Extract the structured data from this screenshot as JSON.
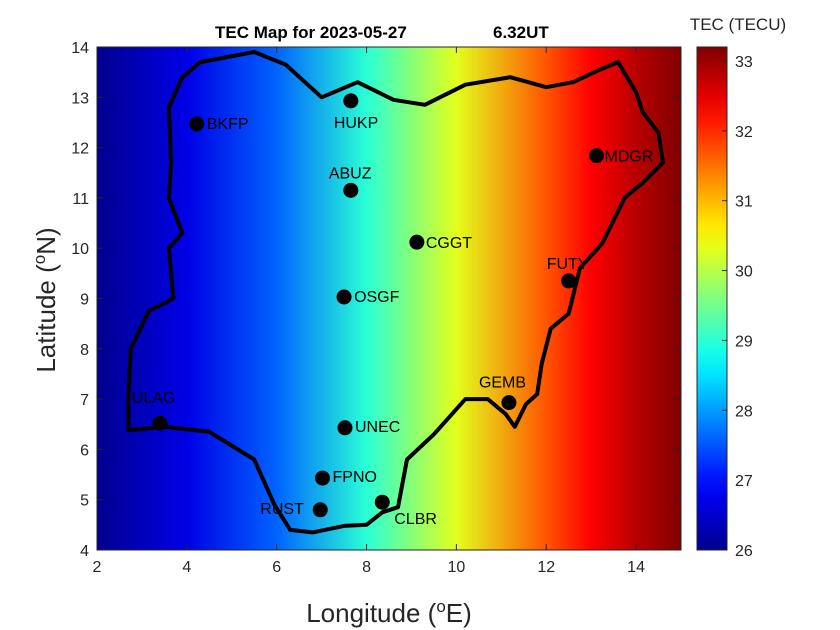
{
  "title_date": "TEC Map for 2023-05-27",
  "title_time": "6.32UT",
  "xlabel": "Longitude (",
  "xlabel_sup": "o",
  "xlabel_end": "E)",
  "ylabel": "Latitude (",
  "ylabel_sup": "o",
  "ylabel_end": "N)",
  "colorbar_label": "TEC (TECU)",
  "colormap": "jet",
  "colors": {
    "jet": [
      "#00008f",
      "#0000ff",
      "#00ffff",
      "#ffff00",
      "#ff0000",
      "#800000"
    ],
    "boundary": "#000000",
    "station_marker": "#000000"
  },
  "chart_data": {
    "type": "heatmap",
    "xlim": [
      2,
      15
    ],
    "ylim": [
      4,
      14
    ],
    "xticks": [
      2,
      4,
      6,
      8,
      10,
      12,
      14
    ],
    "yticks": [
      4,
      5,
      6,
      7,
      8,
      9,
      10,
      11,
      12,
      13,
      14
    ],
    "color_range": [
      26,
      33.2
    ],
    "colorbar_ticks": [
      26,
      27,
      28,
      29,
      30,
      31,
      32,
      33
    ],
    "tec_gradient_by_longitude": [
      {
        "lon": 2,
        "tec": 26.0
      },
      {
        "lon": 4,
        "tec": 26.7
      },
      {
        "lon": 6,
        "tec": 27.6
      },
      {
        "lon": 8,
        "tec": 29.0
      },
      {
        "lon": 10,
        "tec": 30.3
      },
      {
        "lon": 12,
        "tec": 31.7
      },
      {
        "lon": 13,
        "tec": 32.3
      },
      {
        "lon": 14,
        "tec": 32.8
      },
      {
        "lon": 15,
        "tec": 33.2
      }
    ],
    "stations": [
      {
        "name": "BKFP",
        "lon": 4.22,
        "lat": 12.47
      },
      {
        "name": "HUKP",
        "lon": 7.65,
        "lat": 12.93
      },
      {
        "name": "MDGR",
        "lon": 13.12,
        "lat": 11.84
      },
      {
        "name": "ABUZ",
        "lon": 7.65,
        "lat": 11.15
      },
      {
        "name": "CGGT",
        "lon": 9.12,
        "lat": 10.12
      },
      {
        "name": "FUTY",
        "lon": 12.5,
        "lat": 9.35
      },
      {
        "name": "OSGF",
        "lon": 7.5,
        "lat": 9.03
      },
      {
        "name": "GEMB",
        "lon": 11.17,
        "lat": 6.93
      },
      {
        "name": "ULAG",
        "lon": 3.4,
        "lat": 6.52
      },
      {
        "name": "UNEC",
        "lon": 7.52,
        "lat": 6.43
      },
      {
        "name": "FPNO",
        "lon": 7.02,
        "lat": 5.43
      },
      {
        "name": "CLBR",
        "lon": 8.35,
        "lat": 4.95
      },
      {
        "name": "RUST",
        "lon": 6.97,
        "lat": 4.8
      }
    ],
    "boundary": [
      [
        2.7,
        6.38
      ],
      [
        3.5,
        6.45
      ],
      [
        4.5,
        6.35
      ],
      [
        5.5,
        5.8
      ],
      [
        5.95,
        4.9
      ],
      [
        6.3,
        4.4
      ],
      [
        6.8,
        4.35
      ],
      [
        7.5,
        4.48
      ],
      [
        8.0,
        4.5
      ],
      [
        8.35,
        4.75
      ],
      [
        8.7,
        4.85
      ],
      [
        8.9,
        5.8
      ],
      [
        9.5,
        6.3
      ],
      [
        10.2,
        7.0
      ],
      [
        10.7,
        7.0
      ],
      [
        11.1,
        6.7
      ],
      [
        11.3,
        6.45
      ],
      [
        11.55,
        6.9
      ],
      [
        11.8,
        7.1
      ],
      [
        11.9,
        7.7
      ],
      [
        12.1,
        8.4
      ],
      [
        12.5,
        8.7
      ],
      [
        12.75,
        9.6
      ],
      [
        13.25,
        10.1
      ],
      [
        13.75,
        11.0
      ],
      [
        14.15,
        11.3
      ],
      [
        14.6,
        11.7
      ],
      [
        14.5,
        12.3
      ],
      [
        14.15,
        12.7
      ],
      [
        14.0,
        13.1
      ],
      [
        13.6,
        13.7
      ],
      [
        13.2,
        13.55
      ],
      [
        12.6,
        13.3
      ],
      [
        12.0,
        13.2
      ],
      [
        11.2,
        13.4
      ],
      [
        10.2,
        13.25
      ],
      [
        9.3,
        12.85
      ],
      [
        8.6,
        12.95
      ],
      [
        7.8,
        13.3
      ],
      [
        7.0,
        13.0
      ],
      [
        6.2,
        13.65
      ],
      [
        5.5,
        13.9
      ],
      [
        4.3,
        13.7
      ],
      [
        3.9,
        13.4
      ],
      [
        3.6,
        12.8
      ],
      [
        3.65,
        11.7
      ],
      [
        3.6,
        11.0
      ],
      [
        3.9,
        10.3
      ],
      [
        3.6,
        10.0
      ],
      [
        3.7,
        9.0
      ],
      [
        3.15,
        8.75
      ],
      [
        2.75,
        8.0
      ],
      [
        2.7,
        7.0
      ],
      [
        2.7,
        6.38
      ]
    ]
  }
}
